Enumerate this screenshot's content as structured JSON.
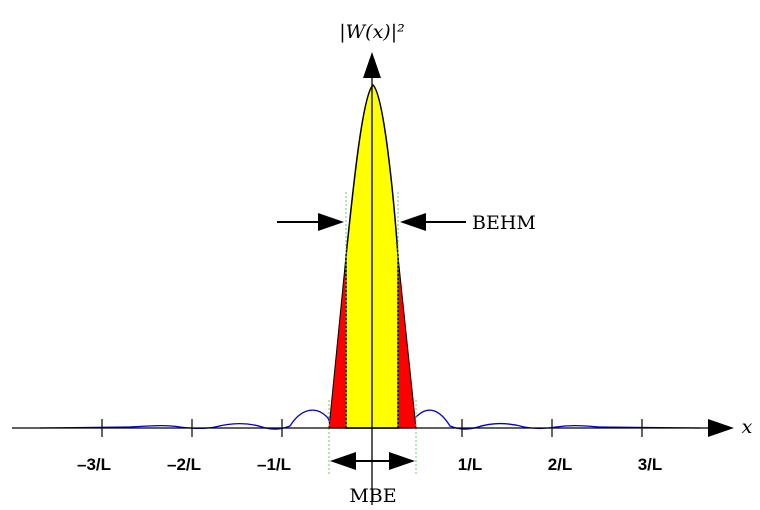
{
  "figure": {
    "y_axis_label": "|W(x)|²",
    "x_axis_label": "x",
    "behm_label": "BEHM",
    "mbe_label": "MBE"
  },
  "chart_data": {
    "type": "line",
    "title": "",
    "xlabel": "x",
    "ylabel": "|W(x)|²",
    "x_ticks": [
      "–3/L",
      "–2/L",
      "–1/L",
      "1/L",
      "2/L",
      "3/L"
    ],
    "x_tick_values": [
      -3,
      -2,
      -1,
      1,
      2,
      3
    ],
    "annotations": [
      "BEHM",
      "MBE"
    ],
    "colors": {
      "main_lobe_fill": "#ffff00",
      "main_lobe_edge_fill": "#ff0000",
      "side_lobe_line": "#0000cc",
      "guide_line": "#66cc66",
      "axis": "#000000"
    }
  }
}
